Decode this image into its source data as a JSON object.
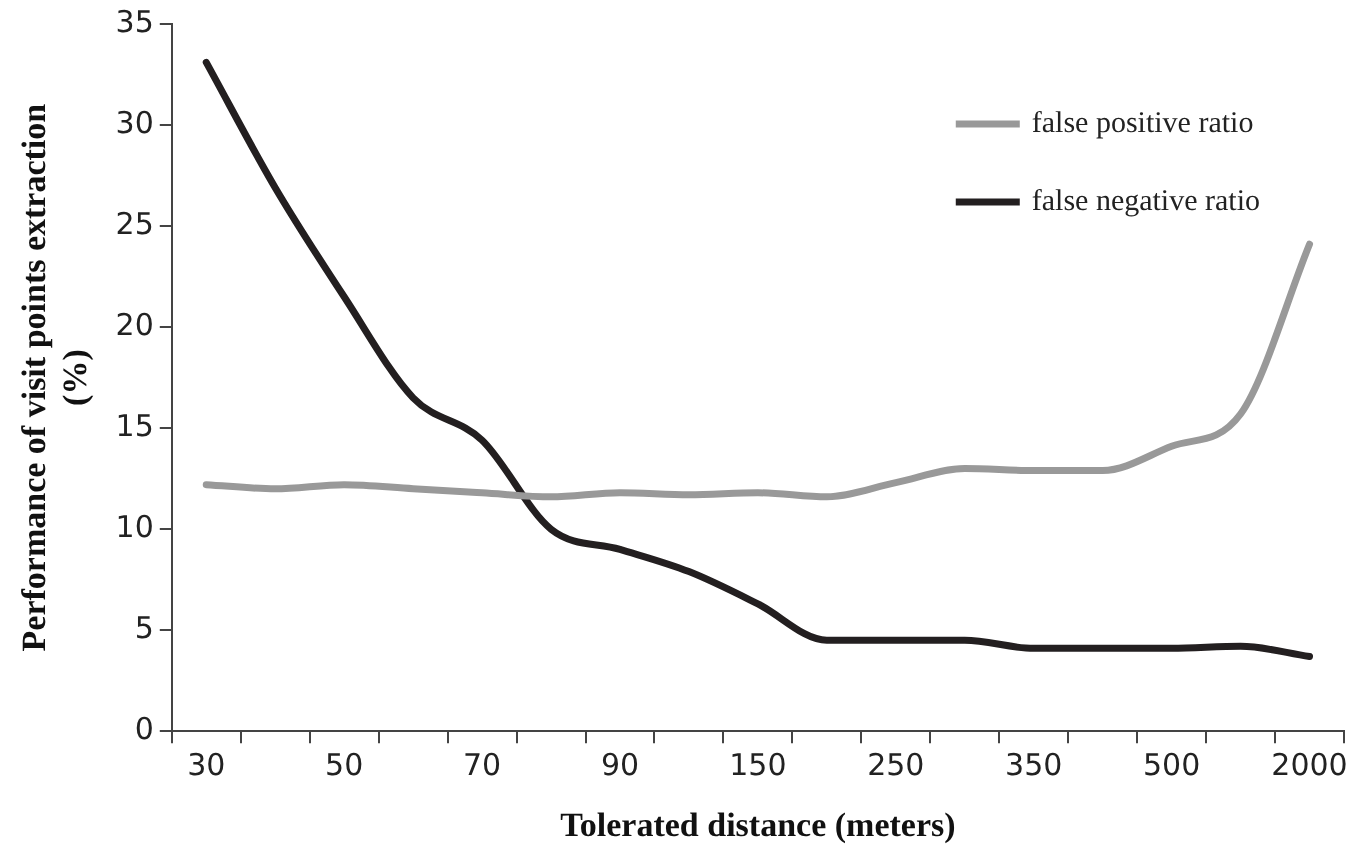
{
  "chart_data": {
    "type": "line",
    "xlabel": "Tolerated distance (meters)",
    "ylabel": "Performance of visit points extraction (%)",
    "categories": [
      "30",
      null,
      "50",
      null,
      "70",
      null,
      "90",
      null,
      "150",
      null,
      "250",
      null,
      "350",
      null,
      "500",
      null,
      "2000"
    ],
    "series": [
      {
        "name": "false positive ratio",
        "color": "#999999",
        "values": [
          12.2,
          12.0,
          12.2,
          12.0,
          11.8,
          11.6,
          11.8,
          11.7,
          11.8,
          11.6,
          12.3,
          13.0,
          12.9,
          12.9,
          14.1,
          15.7,
          24.1
        ]
      },
      {
        "name": "false negative ratio",
        "color": "#231f20",
        "values": [
          33.1,
          26.9,
          21.5,
          16.5,
          14.4,
          10.0,
          9.0,
          7.9,
          6.3,
          4.5,
          4.5,
          4.5,
          4.1,
          4.1,
          4.1,
          4.2,
          3.7
        ]
      }
    ],
    "ylim": [
      0,
      35
    ],
    "yticks": [
      0,
      5,
      10,
      15,
      20,
      25,
      30,
      35
    ],
    "grid": false,
    "legend": "top right",
    "marker": "none",
    "line_style": "solid"
  }
}
